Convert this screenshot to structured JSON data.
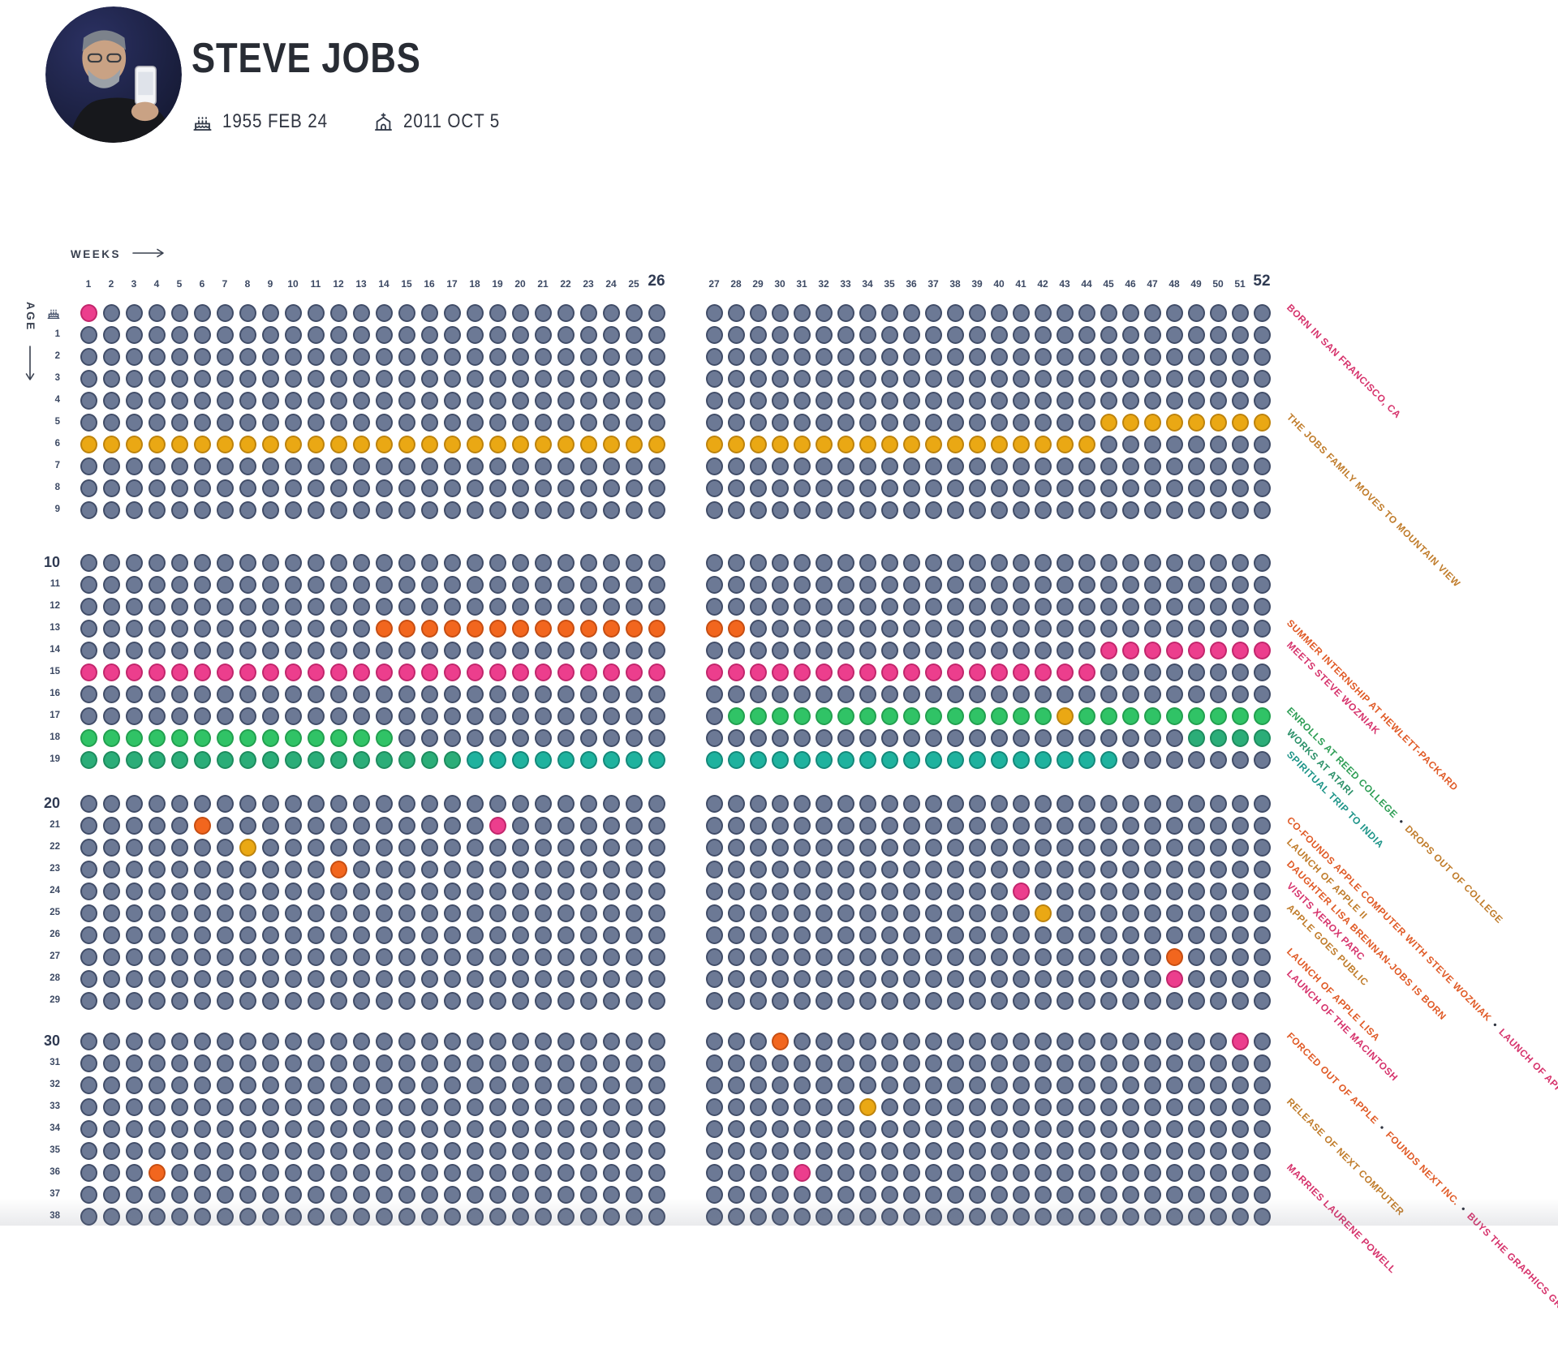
{
  "profile": {
    "name": "STEVE JOBS",
    "birth": "1955 FEB 24",
    "death": "2011 OCT 5"
  },
  "axis": {
    "weeks_label": "WEEKS",
    "age_label": "AGE"
  },
  "colors": {
    "gray": {
      "fill": "#6C7995",
      "stroke": "#414D68",
      "text": "#3C4963"
    },
    "pink": {
      "fill": "#EC3E8D",
      "stroke": "#C2266C",
      "text": "#D6336C"
    },
    "orange": {
      "fill": "#F2661E",
      "stroke": "#C74E12",
      "text": "#E05A26"
    },
    "gold": {
      "fill": "#EAA814",
      "stroke": "#BD830D",
      "text": "#C07C2B"
    },
    "green": {
      "fill": "#30C366",
      "stroke": "#22A04F",
      "text": "#2E9E55"
    },
    "seagreen": {
      "fill": "#2BAD78",
      "stroke": "#1D8C5E",
      "text": "#2B9069"
    },
    "teal": {
      "fill": "#1FB29E",
      "stroke": "#14897A",
      "text": "#1C9488"
    }
  },
  "chart_data": {
    "type": "heatmap",
    "subtype": "life-in-weeks-dot-grid",
    "weeks_per_year": 52,
    "split_after_week": 26,
    "ages_shown": 39,
    "bold_week_labels": [
      26,
      52
    ],
    "decade_labels": [
      10,
      20,
      30
    ],
    "default_color": "gray",
    "events": [
      {
        "age": 0,
        "weeks": [
          1,
          1
        ],
        "color": "pink"
      },
      {
        "age": 5,
        "weeks": [
          45,
          52
        ],
        "color": "gold"
      },
      {
        "age": 6,
        "weeks": [
          1,
          44
        ],
        "color": "gold"
      },
      {
        "age": 13,
        "weeks": [
          14,
          28
        ],
        "color": "orange"
      },
      {
        "age": 14,
        "weeks": [
          45,
          52
        ],
        "color": "pink"
      },
      {
        "age": 15,
        "weeks": [
          1,
          44
        ],
        "color": "pink"
      },
      {
        "age": 17,
        "weeks": [
          28,
          42
        ],
        "color": "green"
      },
      {
        "age": 17,
        "weeks": [
          43,
          43
        ],
        "color": "gold"
      },
      {
        "age": 17,
        "weeks": [
          44,
          52
        ],
        "color": "green"
      },
      {
        "age": 18,
        "weeks": [
          1,
          14
        ],
        "color": "green"
      },
      {
        "age": 18,
        "weeks": [
          49,
          52
        ],
        "color": "seagreen"
      },
      {
        "age": 19,
        "weeks": [
          1,
          17
        ],
        "color": "seagreen"
      },
      {
        "age": 19,
        "weeks": [
          18,
          45
        ],
        "color": "teal"
      },
      {
        "age": 21,
        "weeks": [
          6,
          6
        ],
        "color": "orange"
      },
      {
        "age": 21,
        "weeks": [
          19,
          19
        ],
        "color": "pink"
      },
      {
        "age": 22,
        "weeks": [
          8,
          8
        ],
        "color": "gold"
      },
      {
        "age": 23,
        "weeks": [
          12,
          12
        ],
        "color": "orange"
      },
      {
        "age": 24,
        "weeks": [
          41,
          41
        ],
        "color": "pink"
      },
      {
        "age": 25,
        "weeks": [
          42,
          42
        ],
        "color": "gold"
      },
      {
        "age": 27,
        "weeks": [
          48,
          48
        ],
        "color": "orange"
      },
      {
        "age": 28,
        "weeks": [
          48,
          48
        ],
        "color": "pink"
      },
      {
        "age": 30,
        "weeks": [
          30,
          30
        ],
        "color": "orange"
      },
      {
        "age": 30,
        "weeks": [
          51,
          51
        ],
        "color": "pink"
      },
      {
        "age": 33,
        "weeks": [
          34,
          34
        ],
        "color": "gold"
      },
      {
        "age": 36,
        "weeks": [
          4,
          4
        ],
        "color": "orange"
      },
      {
        "age": 36,
        "weeks": [
          31,
          31
        ],
        "color": "pink"
      }
    ],
    "annotations": [
      {
        "age": 0,
        "segments": [
          {
            "text": "BORN IN SAN FRANCISCO, CA",
            "color": "pink"
          }
        ]
      },
      {
        "age": 5,
        "segments": [
          {
            "text": "THE JOBS FAMILY MOVES TO MOUNTAIN VIEW",
            "color": "gold"
          }
        ]
      },
      {
        "age": 13,
        "segments": [
          {
            "text": "SUMMER INTERNSHIP AT HEWLETT-PACKARD",
            "color": "orange"
          }
        ]
      },
      {
        "age": 14,
        "segments": [
          {
            "text": "MEETS STEVE WOZNIAK",
            "color": "pink"
          }
        ]
      },
      {
        "age": 17,
        "segments": [
          {
            "text": "ENROLLS AT REED COLLEGE",
            "color": "green"
          },
          {
            "text": "DROPS OUT OF COLLEGE",
            "color": "gold"
          }
        ]
      },
      {
        "age": 18,
        "segments": [
          {
            "text": "WORKS AT ATARI",
            "color": "seagreen"
          }
        ]
      },
      {
        "age": 19,
        "segments": [
          {
            "text": "SPIRITUAL TRIP TO INDIA",
            "color": "teal"
          }
        ]
      },
      {
        "age": 21,
        "segments": [
          {
            "text": "CO-FOUNDS APPLE COMPUTER WITH STEVE WOZNIAK",
            "color": "orange"
          },
          {
            "text": "LAUNCH OF APPLE I",
            "color": "pink"
          }
        ]
      },
      {
        "age": 22,
        "segments": [
          {
            "text": "LAUNCH OF APPLE II",
            "color": "gold"
          }
        ]
      },
      {
        "age": 23,
        "segments": [
          {
            "text": "DAUGHTER LISA BRENNAN-JOBS IS BORN",
            "color": "orange"
          }
        ]
      },
      {
        "age": 24,
        "segments": [
          {
            "text": "VISITS XEROX PARC",
            "color": "pink"
          }
        ]
      },
      {
        "age": 25,
        "segments": [
          {
            "text": "APPLE GOES PUBLIC",
            "color": "gold"
          }
        ]
      },
      {
        "age": 27,
        "segments": [
          {
            "text": "LAUNCH OF APPLE LISA",
            "color": "orange"
          }
        ]
      },
      {
        "age": 28,
        "segments": [
          {
            "text": "LAUNCH OF THE MACINTOSH",
            "color": "pink"
          }
        ]
      },
      {
        "age": 30,
        "segments": [
          {
            "text": "FORCED OUT OF APPLE",
            "color": "orange"
          },
          {
            "text": "FOUNDS NEXT INC.",
            "color": "orange"
          },
          {
            "text": "BUYS THE GRAPHICS GROUP (PIXAR)",
            "color": "pink"
          }
        ]
      },
      {
        "age": 33,
        "segments": [
          {
            "text": "RELEASE OF NEXT COMPUTER",
            "color": "gold"
          }
        ]
      },
      {
        "age": 36,
        "segments": [
          {
            "text": "MARRIES LAURENE POWELL",
            "color": "pink"
          }
        ]
      }
    ]
  }
}
